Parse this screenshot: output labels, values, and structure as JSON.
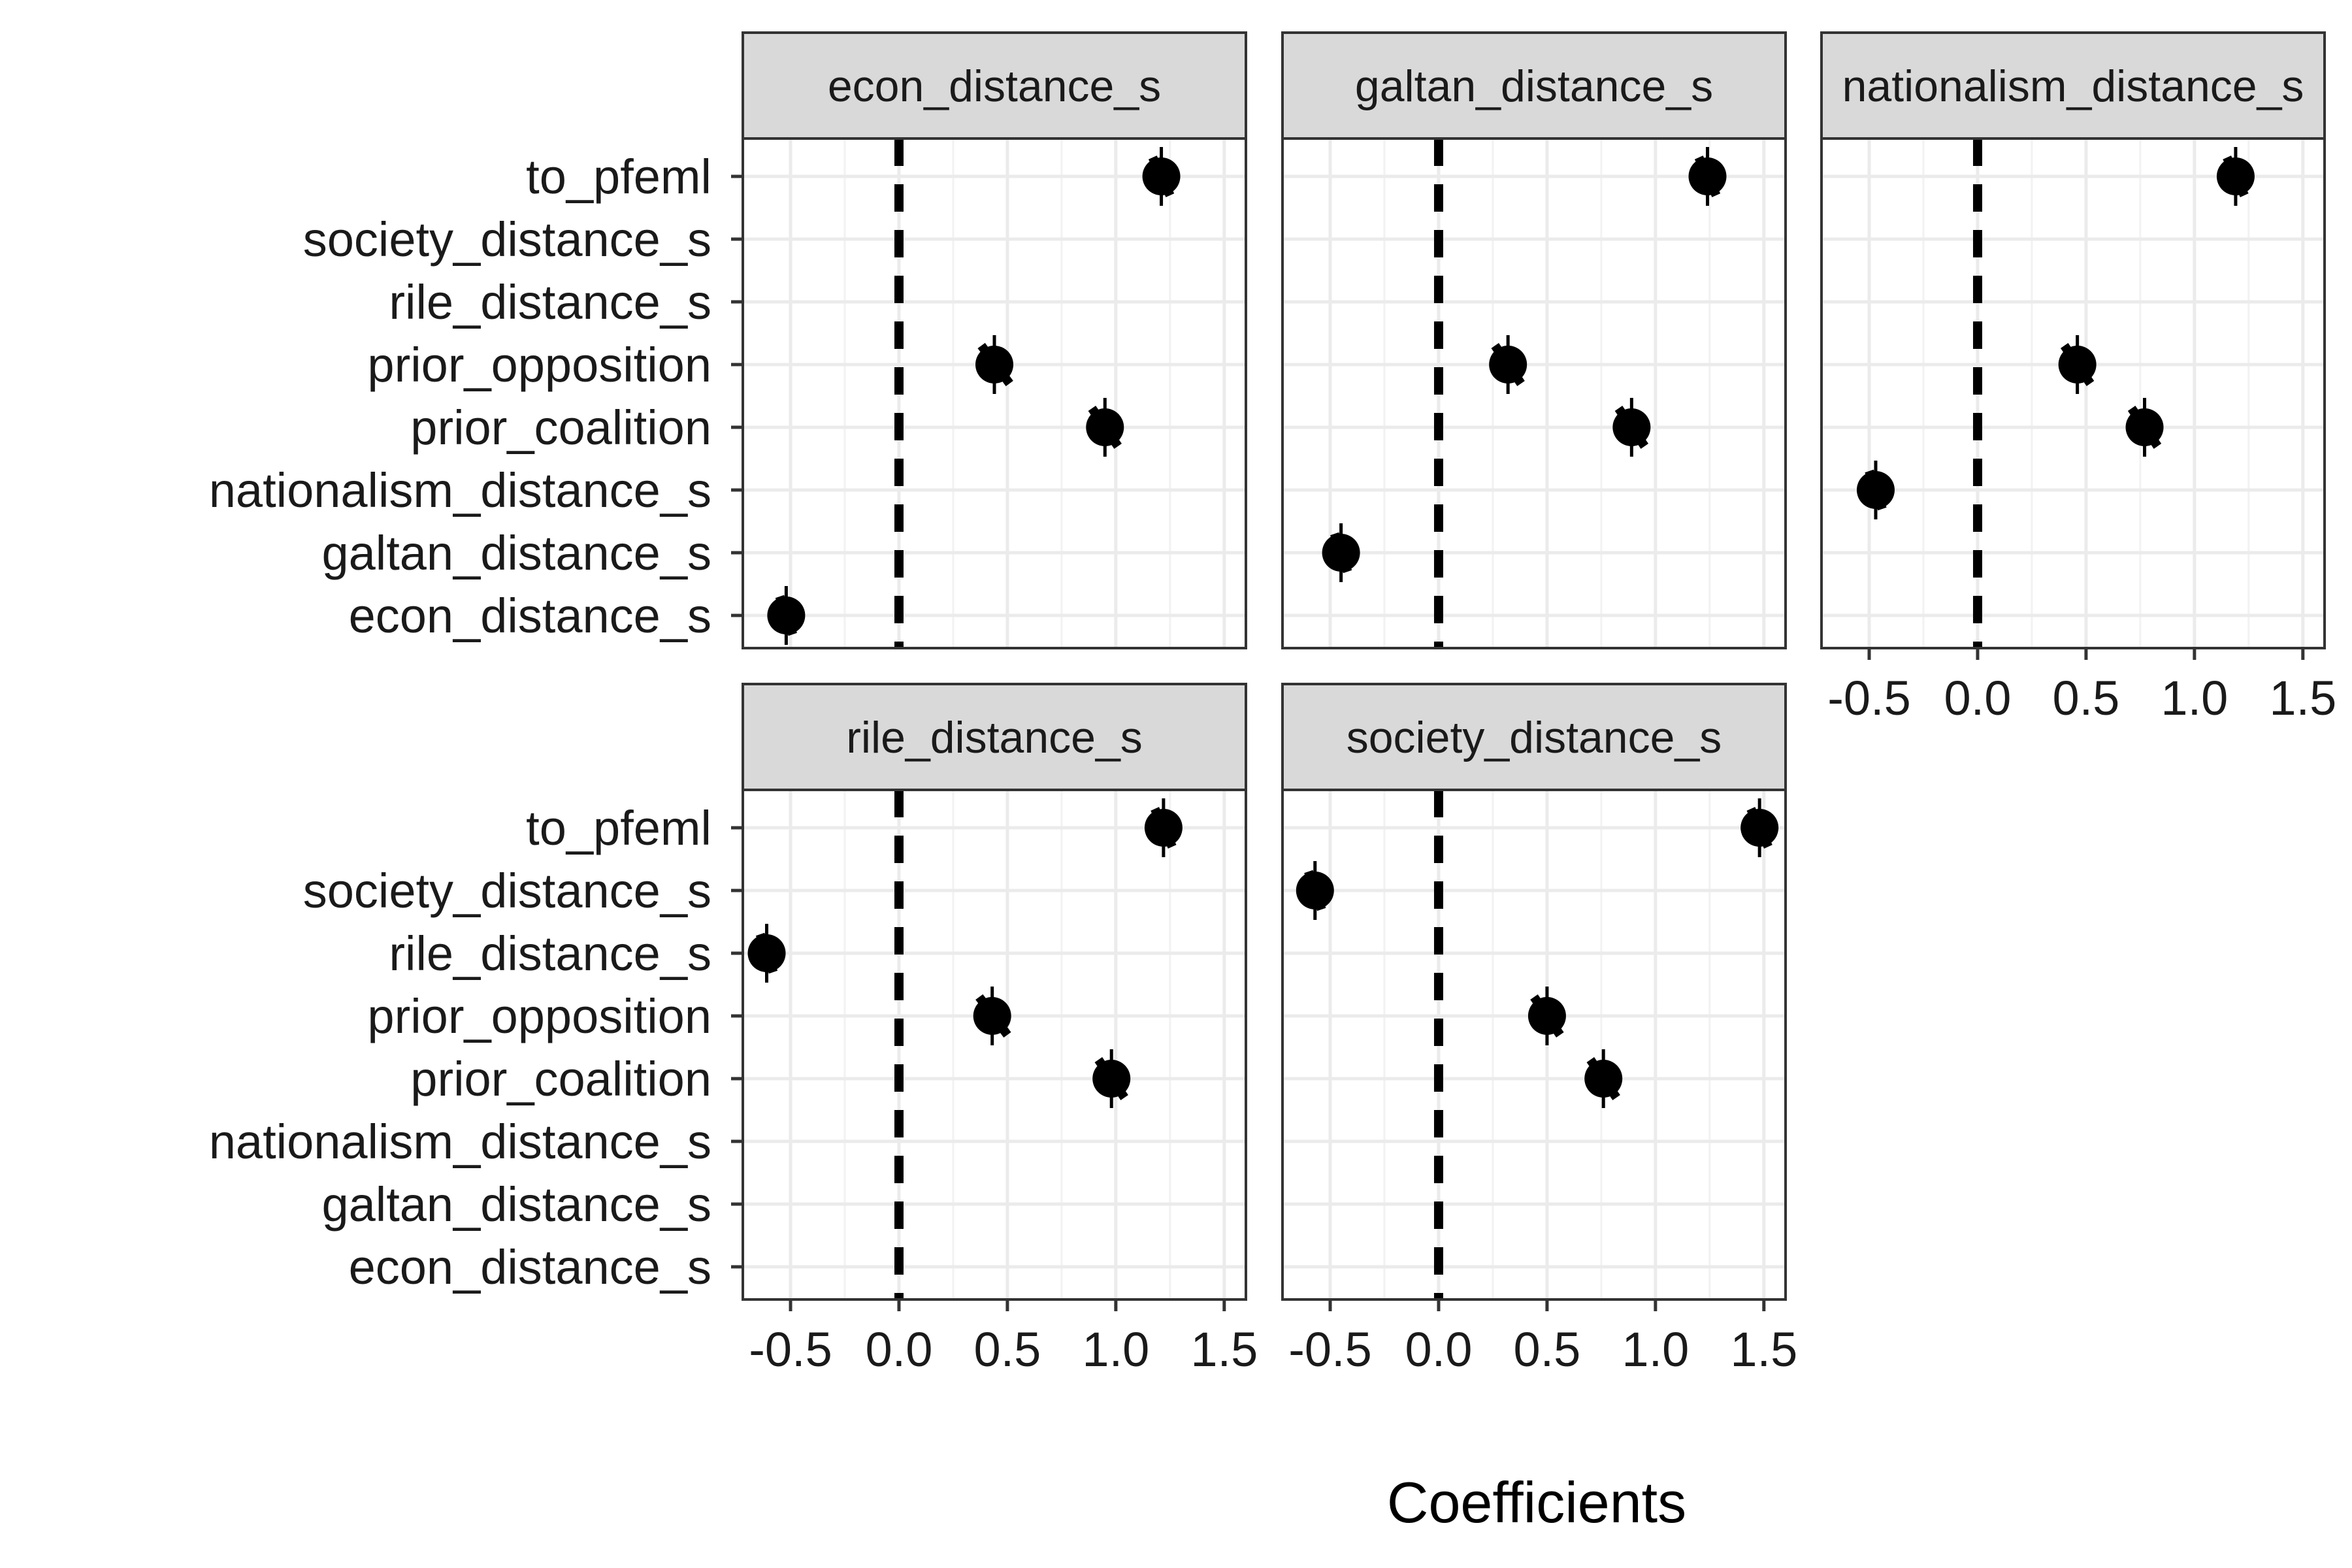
{
  "chart_data": {
    "type": "scatter",
    "subtype": "coefficient-plot-faceted",
    "xlabel": "Coefficients",
    "x_ticks": [
      -0.5,
      0.0,
      0.5,
      1.0,
      1.5
    ],
    "x_tick_labels": [
      "-0.5",
      "0.0",
      "0.5",
      "1.0",
      "1.5"
    ],
    "xlim": [
      -0.72,
      1.6
    ],
    "reference_line_x": 0,
    "grid": true,
    "y_categories": [
      "to_pfeml",
      "society_distance_s",
      "rile_distance_s",
      "prior_opposition",
      "prior_coalition",
      "nationalism_distance_s",
      "galtan_distance_s",
      "econ_distance_s"
    ],
    "panels": [
      {
        "title": "econ_distance_s",
        "points": [
          {
            "term": "to_pfeml",
            "estimate": 1.21,
            "low": 1.17,
            "high": 1.25
          },
          {
            "term": "prior_opposition",
            "estimate": 0.44,
            "low": 0.38,
            "high": 0.51
          },
          {
            "term": "prior_coalition",
            "estimate": 0.95,
            "low": 0.89,
            "high": 1.01
          },
          {
            "term": "econ_distance_s",
            "estimate": -0.52,
            "low": -0.55,
            "high": -0.49
          }
        ]
      },
      {
        "title": "galtan_distance_s",
        "points": [
          {
            "term": "to_pfeml",
            "estimate": 1.24,
            "low": 1.2,
            "high": 1.28
          },
          {
            "term": "prior_opposition",
            "estimate": 0.32,
            "low": 0.26,
            "high": 0.38
          },
          {
            "term": "prior_coalition",
            "estimate": 0.89,
            "low": 0.83,
            "high": 0.95
          },
          {
            "term": "galtan_distance_s",
            "estimate": -0.45,
            "low": -0.48,
            "high": -0.42
          }
        ]
      },
      {
        "title": "nationalism_distance_s",
        "points": [
          {
            "term": "to_pfeml",
            "estimate": 1.19,
            "low": 1.15,
            "high": 1.23
          },
          {
            "term": "prior_opposition",
            "estimate": 0.46,
            "low": 0.4,
            "high": 0.52
          },
          {
            "term": "prior_coalition",
            "estimate": 0.77,
            "low": 0.71,
            "high": 0.83
          },
          {
            "term": "nationalism_distance_s",
            "estimate": -0.47,
            "low": -0.5,
            "high": -0.44
          }
        ]
      },
      {
        "title": "rile_distance_s",
        "points": [
          {
            "term": "to_pfeml",
            "estimate": 1.22,
            "low": 1.18,
            "high": 1.26
          },
          {
            "term": "rile_distance_s",
            "estimate": -0.61,
            "low": -0.64,
            "high": -0.58
          },
          {
            "term": "prior_opposition",
            "estimate": 0.43,
            "low": 0.37,
            "high": 0.5
          },
          {
            "term": "prior_coalition",
            "estimate": 0.98,
            "low": 0.92,
            "high": 1.04
          }
        ]
      },
      {
        "title": "society_distance_s",
        "points": [
          {
            "term": "to_pfeml",
            "estimate": 1.48,
            "low": 1.44,
            "high": 1.52
          },
          {
            "term": "society_distance_s",
            "estimate": -0.57,
            "low": -0.6,
            "high": -0.54
          },
          {
            "term": "prior_opposition",
            "estimate": 0.5,
            "low": 0.44,
            "high": 0.56
          },
          {
            "term": "prior_coalition",
            "estimate": 0.76,
            "low": 0.7,
            "high": 0.82
          }
        ]
      }
    ]
  }
}
